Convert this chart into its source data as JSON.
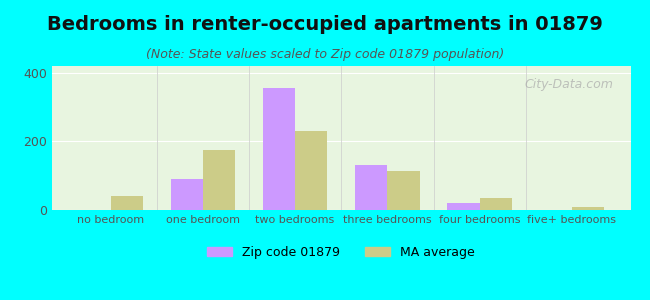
{
  "title": "Bedrooms in renter-occupied apartments in 01879",
  "subtitle": "(Note: State values scaled to Zip code 01879 population)",
  "categories": [
    "no bedroom",
    "one bedroom",
    "two bedrooms",
    "three bedrooms",
    "four bedrooms",
    "five+ bedrooms"
  ],
  "zip_values": [
    0,
    90,
    355,
    130,
    20,
    0
  ],
  "ma_values": [
    40,
    175,
    230,
    115,
    35,
    8
  ],
  "zip_color": "#cc99ff",
  "ma_color": "#cccc88",
  "background_outer": "#00ffff",
  "ylim": [
    0,
    420
  ],
  "yticks": [
    0,
    200,
    400
  ],
  "bar_width": 0.35,
  "zip_label": "Zip code 01879",
  "ma_label": "MA average",
  "title_fontsize": 14,
  "subtitle_fontsize": 9,
  "watermark": "City-Data.com"
}
